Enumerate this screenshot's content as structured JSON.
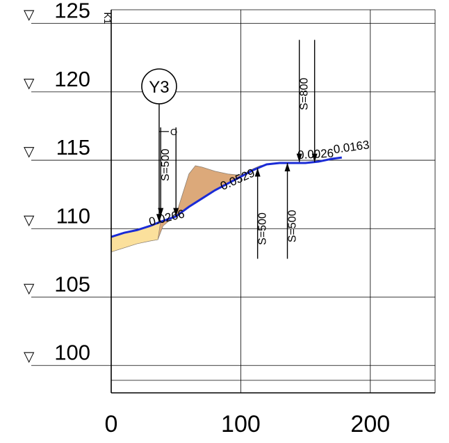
{
  "chart_data": {
    "type": "line",
    "title": "",
    "xlabel": "",
    "ylabel": "",
    "x_ticks": [
      "0",
      "100",
      "200"
    ],
    "y_ticks": [
      "100",
      "105",
      "110",
      "115",
      "120",
      "125"
    ],
    "xlim": [
      0,
      250
    ],
    "ylim": [
      98,
      126
    ],
    "grid": true,
    "chainage_marker": "K1",
    "elevation_marker_symbol": "▽",
    "series": [
      {
        "values_x": [
          0,
          10,
          20,
          30,
          38,
          50,
          60,
          70,
          80,
          90,
          100,
          110,
          120,
          130,
          140,
          150,
          160,
          170,
          178
        ],
        "values_y": [
          109.4,
          109.7,
          109.9,
          110.2,
          110.5,
          110.9,
          111.6,
          112.2,
          112.8,
          113.3,
          113.8,
          114.3,
          114.7,
          114.8,
          114.8,
          114.8,
          114.9,
          115.1,
          115.2
        ]
      }
    ],
    "ground_profile": {
      "x": [
        0,
        10,
        20,
        30,
        36,
        40,
        50,
        55,
        60,
        65,
        70,
        80,
        90,
        100,
        110,
        115,
        120,
        125
      ],
      "y": [
        108.3,
        108.6,
        108.9,
        109.1,
        109.2,
        110.2,
        111.0,
        112.5,
        114.0,
        114.6,
        114.5,
        114.2,
        114.0,
        113.9,
        114.4,
        114.6,
        114.7,
        114.8
      ]
    },
    "grades": [
      {
        "label": "0.0266",
        "x": 30,
        "y": 110.2
      },
      {
        "label": "0.0529",
        "x": 86,
        "y": 112.8
      },
      {
        "label": "0.0026",
        "x": 144,
        "y": 115.1
      },
      {
        "label": "0.0163",
        "x": 172,
        "y": 115.5
      }
    ],
    "vertical_curves": [
      {
        "label": "S=500",
        "x": 50,
        "side": "above"
      },
      {
        "label": "S=500",
        "x": 113,
        "side": "below"
      },
      {
        "label": "S=500",
        "x": 136,
        "side": "below"
      },
      {
        "label": "S=800",
        "x": 157,
        "side": "above"
      }
    ],
    "callout": {
      "label": "Y3",
      "x": 37,
      "side_text": "O"
    }
  }
}
